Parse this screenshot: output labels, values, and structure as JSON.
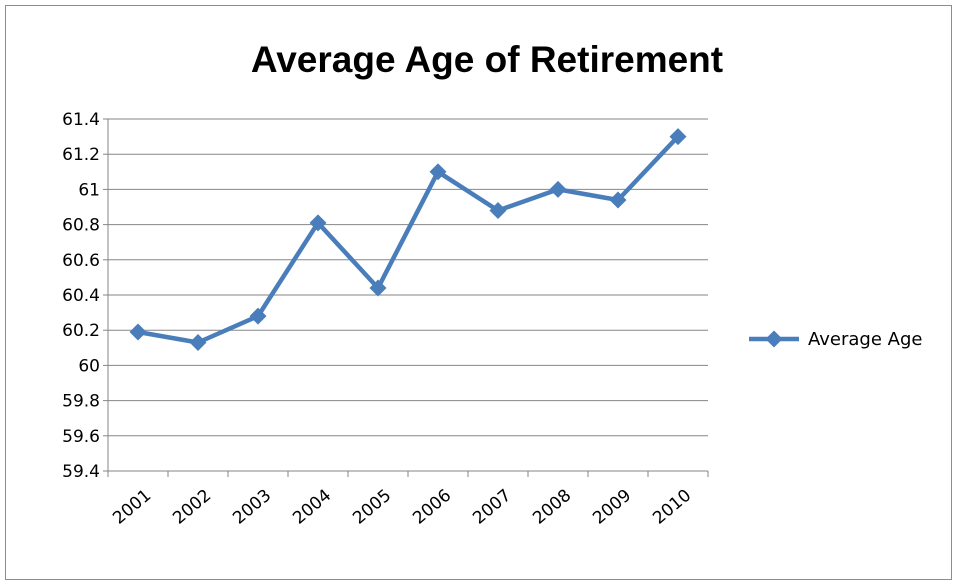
{
  "chart_data": {
    "type": "line",
    "title": "Average Age of Retirement",
    "xlabel": "",
    "ylabel": "",
    "categories": [
      "2001",
      "2002",
      "2003",
      "2004",
      "2005",
      "2006",
      "2007",
      "2008",
      "2009",
      "2010"
    ],
    "series": [
      {
        "name": "Average Age",
        "values": [
          60.19,
          60.13,
          60.28,
          60.81,
          60.44,
          61.1,
          60.88,
          61.0,
          60.94,
          61.3
        ],
        "color": "#4a7ebb",
        "marker": "diamond"
      }
    ],
    "ylim": [
      59.4,
      61.4
    ],
    "yticks": [
      "59.4",
      "59.6",
      "59.8",
      "60",
      "60.2",
      "60.4",
      "60.6",
      "60.8",
      "61",
      "61.2",
      "61.4"
    ],
    "grid": "horizontal",
    "legend": "right",
    "gridline_color": "#868686",
    "axis_color": "#868686"
  }
}
